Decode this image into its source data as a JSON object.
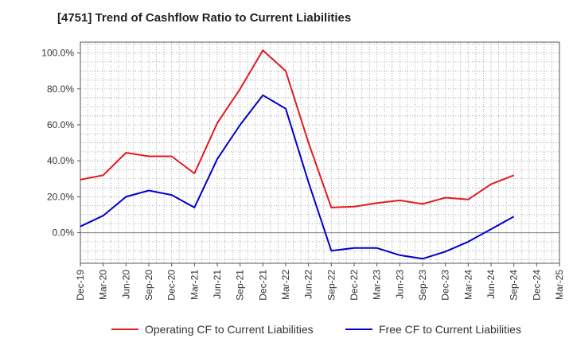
{
  "chart_data": {
    "type": "line",
    "title": "[4751]  Trend of Cashflow Ratio to Current Liabilities",
    "xlabel": "",
    "ylabel": "",
    "categories": [
      "Dec-19",
      "Mar-20",
      "Jun-20",
      "Sep-20",
      "Dec-20",
      "Mar-21",
      "Jun-21",
      "Sep-21",
      "Dec-21",
      "Mar-22",
      "Jun-22",
      "Sep-22",
      "Dec-22",
      "Mar-23",
      "Jun-23",
      "Sep-23",
      "Dec-23",
      "Mar-24",
      "Jun-24",
      "Sep-24",
      "Dec-24",
      "Mar-25"
    ],
    "ylim": [
      -17,
      106
    ],
    "yticks": [
      0,
      20,
      40,
      60,
      80,
      100
    ],
    "ytick_labels": [
      "0.0%",
      "20.0%",
      "40.0%",
      "60.0%",
      "80.0%",
      "100.0%"
    ],
    "grid": true,
    "legend_position": "bottom",
    "series": [
      {
        "name": "Operating CF to Current Liabilities",
        "color": "#e41a1c",
        "values": [
          29.5,
          32,
          44.5,
          42.5,
          42.5,
          33,
          61,
          80,
          101.5,
          90,
          50,
          14,
          14.5,
          16.5,
          18,
          16,
          19.5,
          18.5,
          27,
          32,
          null,
          null
        ]
      },
      {
        "name": "Free CF to Current Liabilities",
        "color": "#0000cc",
        "values": [
          3.5,
          9.5,
          20,
          23.5,
          21,
          14,
          41,
          60,
          76.5,
          69,
          28,
          -10,
          -8.5,
          -8.5,
          -12.5,
          -14.5,
          -10.5,
          -5,
          2,
          9,
          null,
          null
        ]
      }
    ]
  }
}
